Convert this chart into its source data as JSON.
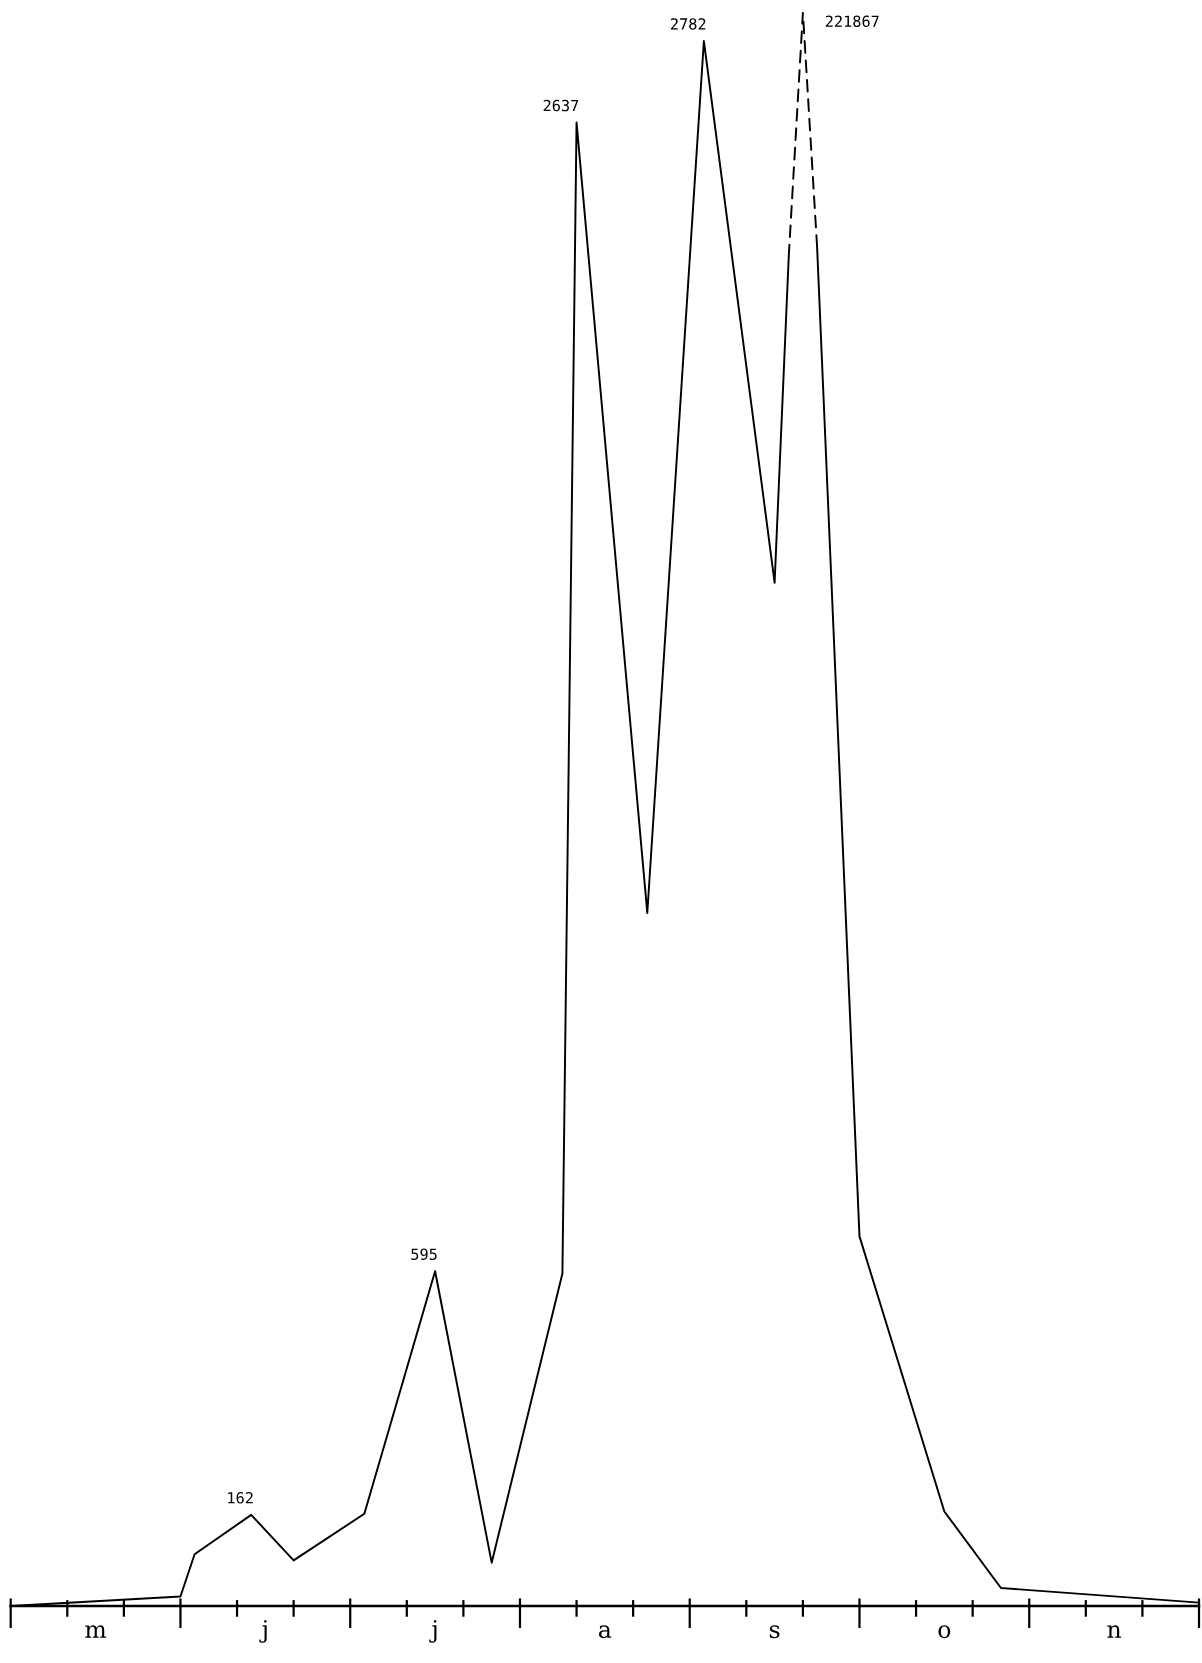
{
  "chart_data": {
    "type": "line",
    "tick_labels": "x",
    "marker": "none",
    "categories": [
      null,
      null,
      null,
      null,
      null,
      null,
      "m",
      null,
      null,
      null,
      null,
      null,
      null,
      null,
      null,
      null,
      null,
      null,
      "j",
      null,
      null,
      null,
      null,
      null,
      null,
      null,
      null,
      null,
      null,
      null,
      "j",
      null,
      null,
      null,
      null,
      null,
      null,
      null,
      null,
      null,
      null,
      null,
      "a",
      null,
      null,
      null,
      null,
      null,
      null,
      null,
      null,
      null,
      null,
      null,
      "s",
      null,
      null,
      null,
      null,
      null,
      null,
      null,
      null,
      null,
      null,
      null,
      "o",
      null,
      null,
      null,
      null,
      null,
      null,
      null,
      null,
      null,
      null,
      null,
      "n",
      null,
      null,
      null,
      null,
      null,
      null
    ],
    "series": [
      {
        "color": "#000000",
        "line_style": "solid",
        "values": [
          0,
          null,
          null,
          null,
          null,
          null,
          null,
          null,
          null,
          null,
          null,
          null,
          17,
          92,
          null,
          null,
          null,
          162,
          null,
          null,
          81,
          null,
          null,
          null,
          null,
          164,
          null,
          null,
          null,
          null,
          595,
          null,
          null,
          null,
          77,
          null,
          null,
          null,
          null,
          591,
          2637,
          null,
          null,
          null,
          null,
          1232,
          null,
          null,
          null,
          2782,
          null,
          null,
          null,
          null,
          1819,
          2399,
          null,
          null,
          null,
          null,
          null,
          null,
          null,
          null,
          null,
          null,
          null,
          null,
          null,
          null,
          null,
          null,
          null,
          null,
          null,
          null,
          null,
          null,
          null,
          null,
          null,
          null,
          null,
          null,
          null
        ],
        "value_labels": [
          null,
          null,
          null,
          null,
          null,
          null,
          null,
          null,
          null,
          null,
          null,
          null,
          null,
          null,
          null,
          null,
          null,
          "162",
          null,
          null,
          null,
          null,
          null,
          null,
          null,
          null,
          null,
          null,
          null,
          null,
          "595",
          null,
          null,
          null,
          null,
          null,
          null,
          null,
          null,
          null,
          "2637",
          null,
          null,
          null,
          null,
          null,
          null,
          null,
          null,
          "2782",
          null,
          null,
          null,
          null,
          null,
          null,
          null,
          null,
          null,
          null,
          null,
          null,
          null,
          null,
          null,
          null,
          null,
          null,
          null,
          null,
          null,
          null,
          null,
          null,
          null,
          null,
          null,
          null,
          null,
          null,
          null,
          null,
          null,
          null,
          null
        ]
      },
      {
        "color": "#000000",
        "line_style": "solid",
        "values": [
          null,
          null,
          null,
          null,
          null,
          null,
          null,
          null,
          null,
          null,
          null,
          null,
          null,
          null,
          null,
          null,
          null,
          null,
          null,
          null,
          null,
          null,
          null,
          null,
          null,
          null,
          null,
          null,
          null,
          null,
          null,
          null,
          null,
          null,
          null,
          null,
          null,
          null,
          null,
          null,
          null,
          null,
          null,
          null,
          null,
          null,
          null,
          null,
          null,
          null,
          null,
          null,
          null,
          null,
          null,
          null,
          null,
          2418,
          null,
          null,
          657,
          null,
          null,
          null,
          null,
          null,
          168,
          null,
          null,
          null,
          32,
          null,
          null,
          null,
          null,
          null,
          null,
          null,
          null,
          null,
          null,
          null,
          null,
          null,
          6
        ]
      },
      {
        "color": "#000000",
        "line_style": "dashed",
        "values": [
          null,
          null,
          null,
          null,
          null,
          null,
          null,
          null,
          null,
          null,
          null,
          null,
          null,
          null,
          null,
          null,
          null,
          null,
          null,
          null,
          null,
          null,
          null,
          null,
          null,
          null,
          null,
          null,
          null,
          null,
          null,
          null,
          null,
          null,
          null,
          null,
          null,
          null,
          null,
          null,
          null,
          null,
          null,
          null,
          null,
          null,
          null,
          null,
          null,
          null,
          null,
          null,
          null,
          null,
          null,
          2399,
          2832,
          2418,
          null,
          null,
          null,
          null,
          null,
          null,
          null,
          null,
          null,
          null,
          null,
          null,
          null,
          null,
          null,
          null,
          null,
          null,
          null,
          null,
          null,
          null,
          null,
          null,
          null,
          null,
          null
        ]
      }
    ],
    "annotations": [
      "221867"
    ]
  }
}
